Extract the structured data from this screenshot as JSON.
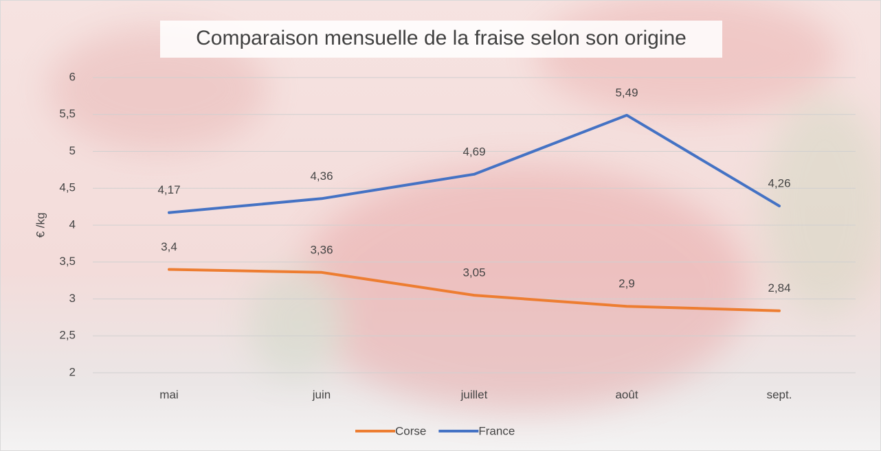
{
  "chart_data": {
    "type": "line",
    "title": "Comparaison mensuelle de la fraise selon son origine",
    "y_label": "€ /kg",
    "categories": [
      "mai",
      "juin",
      "juillet",
      "août",
      "sept."
    ],
    "series": [
      {
        "name": "Corse",
        "color": "#ED7D31",
        "values": [
          3.4,
          3.36,
          3.05,
          2.9,
          2.84
        ],
        "value_labels": [
          "3,4",
          "3,36",
          "3,05",
          "2,9",
          "2,84"
        ]
      },
      {
        "name": "France",
        "color": "#4472C4",
        "values": [
          4.17,
          4.36,
          4.69,
          5.49,
          4.26
        ],
        "value_labels": [
          "4,17",
          "4,36",
          "4,69",
          "5,49",
          "4,26"
        ]
      }
    ],
    "ylim": [
      2,
      6
    ],
    "yticks": [
      2,
      {
        "value": 2.5,
        "label": "2,5"
      },
      3,
      {
        "value": 3.5,
        "label": "3,5"
      },
      4,
      {
        "value": 4.5,
        "label": "4,5"
      },
      5,
      {
        "value": 5.5,
        "label": "5,5"
      },
      6
    ],
    "grid": true,
    "legend": "bottom"
  }
}
